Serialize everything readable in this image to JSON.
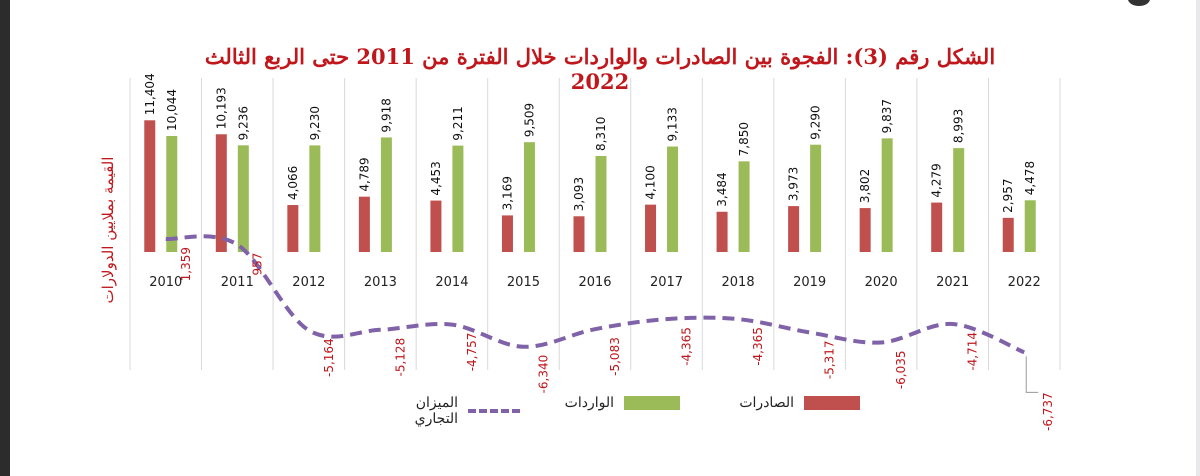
{
  "title": "الشكل رقم (3): الفجوة بين الصادرات والواردات خلال الفترة من 2011 حتى الربع الثالث 2022",
  "chart_data": {
    "type": "bar",
    "title": "الشكل رقم (3): الفجوة بين الصادرات والواردات خلال الفترة من 2011 حتى الربع الثالث 2022",
    "ylabel": "القيمة بملايين الدولارات",
    "xlabel": "",
    "categories": [
      "2010",
      "2011",
      "2012",
      "2013",
      "2014",
      "2015",
      "2016",
      "2017",
      "2018",
      "2019",
      "2020",
      "2021",
      "2022"
    ],
    "series": [
      {
        "name": "الصادرات",
        "type": "bar",
        "color": "#c0504d",
        "values": [
          11404,
          10193,
          4066,
          4789,
          4453,
          3169,
          3093,
          4100,
          3484,
          3973,
          3802,
          4279,
          2957
        ],
        "labels": [
          "11,404",
          "10,193",
          "4,066",
          "4,789",
          "4,453",
          "3,169",
          "3,093",
          "4,100",
          "3,484",
          "3,973",
          "3,802",
          "4,279",
          "2,957"
        ]
      },
      {
        "name": "الواردات",
        "type": "bar",
        "color": "#9bbb59",
        "values": [
          10044,
          9236,
          9230,
          9918,
          9211,
          9509,
          8310,
          9133,
          7850,
          9290,
          9837,
          8993,
          4478
        ],
        "labels": [
          "10,044",
          "9,236",
          "9,230",
          "9,918",
          "9,211",
          "9,509",
          "8,310",
          "9,133",
          "7,850",
          "9,290",
          "9,837",
          "8,993",
          "4,478"
        ]
      },
      {
        "name": "الميزان التجاري",
        "type": "line",
        "color": "#7f62a8",
        "values": [
          1359,
          957,
          -5164,
          -5128,
          -4757,
          -6340,
          -5083,
          -4365,
          -4365,
          -5317,
          -6035,
          -4714,
          -6737
        ],
        "labels": [
          "1,359",
          "957",
          "-5,164",
          "-5,128",
          "-4,757",
          "-6,340",
          "-5,083",
          "-4,365",
          "-4,365",
          "-5,317",
          "-6,035",
          "-4,714",
          "-6,737"
        ]
      }
    ],
    "grid": "vertical",
    "legend_position": "bottom"
  }
}
